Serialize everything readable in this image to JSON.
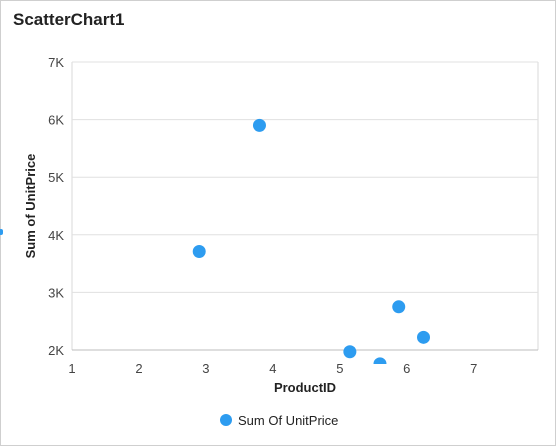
{
  "chart_title": "ScatterChart1",
  "chart_data": {
    "type": "scatter",
    "title": "ScatterChart1",
    "xlabel": "ProductID",
    "ylabel": "Sum of UnitPrice",
    "x_ticks": [
      "1",
      "2",
      "3",
      "4",
      "5",
      "6",
      "7"
    ],
    "y_ticks": [
      "2K",
      "3K",
      "4K",
      "5K",
      "6K",
      "7K"
    ],
    "xlim": [
      1,
      7.96
    ],
    "ylim": [
      2000,
      7000
    ],
    "grid": true,
    "legend_position": "bottom",
    "series": [
      {
        "name": "Sum Of UnitPrice",
        "color": "#2d9cf0",
        "points": [
          {
            "x": 2.9,
            "y": 3710
          },
          {
            "x": 3.8,
            "y": 5900
          },
          {
            "x": 5.15,
            "y": 1970
          },
          {
            "x": 5.6,
            "y": 1760
          },
          {
            "x": 5.88,
            "y": 2750
          },
          {
            "x": 6.25,
            "y": 2220
          }
        ]
      }
    ]
  }
}
